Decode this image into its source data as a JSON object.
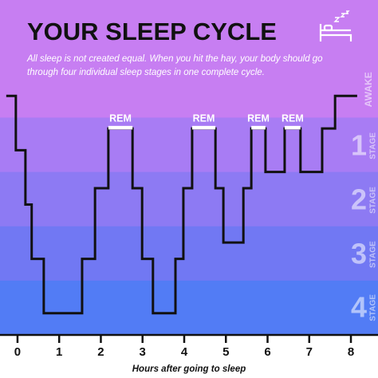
{
  "chart_data": {
    "type": "step",
    "title": "YOUR SLEEP CYCLE",
    "subtitle": "All sleep is not created equal. When you hit the hay, your body should go through four individual sleep stages in one complete cycle.",
    "x_label": "Hours after going to sleep",
    "xlim": [
      -0.42,
      8.65
    ],
    "xticks": [
      0,
      1,
      2,
      3,
      4,
      5,
      6,
      7,
      8
    ],
    "ylim": [
      4.4,
      -1.765
    ],
    "x": [
      -0.27,
      -0.04,
      0.19,
      0.34,
      0.63,
      1.55,
      1.86,
      2.18,
      2.76,
      2.99,
      3.25,
      3.79,
      3.98,
      4.19,
      4.75,
      4.94,
      5.42,
      5.61,
      5.95,
      6.41,
      6.79,
      7.31,
      7.62,
      8.15
    ],
    "values": [
      0,
      1,
      2,
      3,
      4,
      3,
      1.7,
      0.6,
      1.7,
      3,
      4,
      3,
      1.7,
      0.6,
      1.7,
      2.7,
      1.7,
      0.6,
      1.4,
      0.6,
      1.4,
      0.6,
      0,
      0
    ],
    "color": "#111111",
    "awake": {
      "label": "AWAKE",
      "level": 0,
      "color": "#c77ef2"
    },
    "stages": [
      {
        "number": 1,
        "label": "STAGE",
        "color": "#a87cf4"
      },
      {
        "number": 2,
        "label": "STAGE",
        "color": "#8d7af3"
      },
      {
        "number": 3,
        "label": "STAGE",
        "color": "#7178f3"
      },
      {
        "number": 4,
        "label": "STAGE",
        "color": "#527cf5"
      }
    ],
    "annotations": [
      {
        "text": "REM",
        "x": [
          2.18,
          2.76
        ],
        "y": 0.6
      },
      {
        "text": "REM",
        "x": [
          4.19,
          4.75
        ],
        "y": 0.6
      },
      {
        "text": "REM",
        "x": [
          5.61,
          5.95
        ],
        "y": 0.6
      },
      {
        "text": "REM",
        "x": [
          6.41,
          6.79
        ],
        "y": 0.6
      }
    ]
  }
}
